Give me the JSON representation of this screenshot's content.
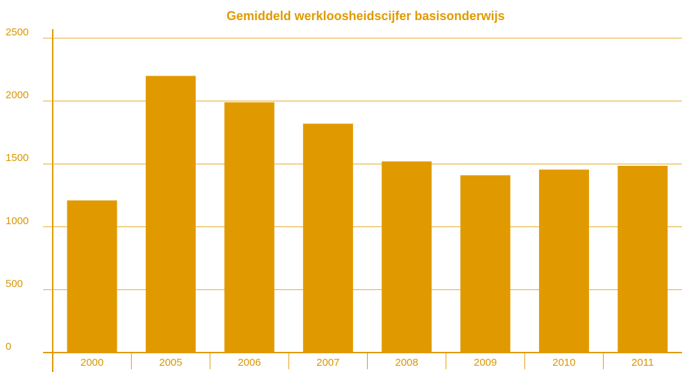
{
  "chart_data": {
    "type": "bar",
    "title": "Gemiddeld werkloosheidscijfer basisonderwijs",
    "categories": [
      "2000",
      "2005",
      "2006",
      "2007",
      "2008",
      "2009",
      "2010",
      "2011"
    ],
    "values": [
      1210,
      2200,
      1990,
      1820,
      1520,
      1410,
      1455,
      1485
    ],
    "color": "#e09a00",
    "ylim": [
      0,
      2500
    ],
    "yticks": [
      0,
      500,
      1000,
      1500,
      2000,
      2500
    ],
    "grid": true
  }
}
